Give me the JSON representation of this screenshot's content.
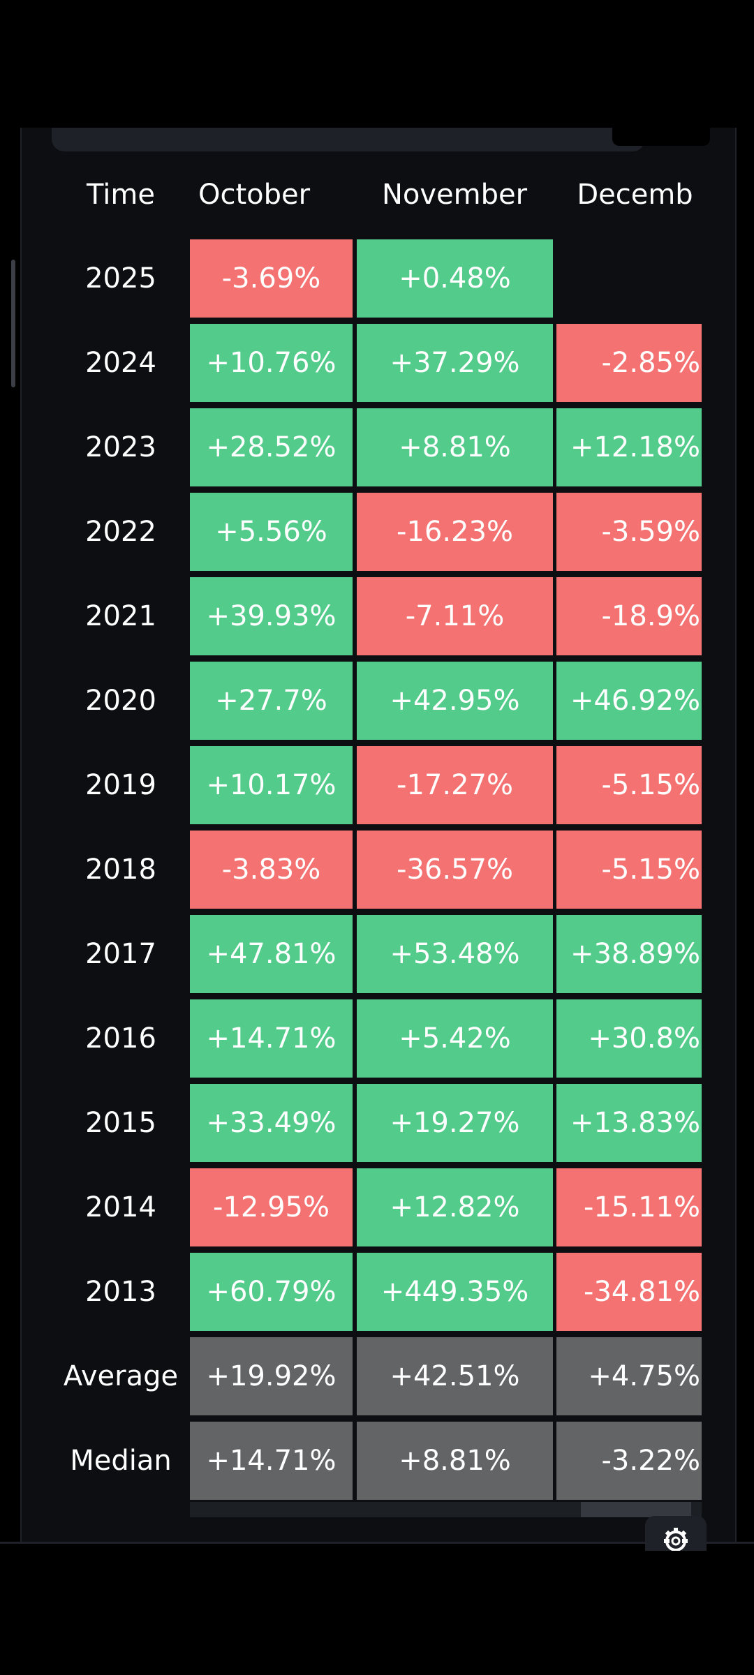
{
  "table": {
    "header": {
      "time": "Time",
      "october": "October",
      "november": "November",
      "december": "Decemb"
    },
    "rows": [
      {
        "label": "2025",
        "october": "-3.69%",
        "november": "+0.48%",
        "december": ""
      },
      {
        "label": "2024",
        "october": "+10.76%",
        "november": "+37.29%",
        "december": "-2.85%"
      },
      {
        "label": "2023",
        "october": "+28.52%",
        "november": "+8.81%",
        "december": "+12.18%"
      },
      {
        "label": "2022",
        "october": "+5.56%",
        "november": "-16.23%",
        "december": "-3.59%"
      },
      {
        "label": "2021",
        "october": "+39.93%",
        "november": "-7.11%",
        "december": "-18.9%"
      },
      {
        "label": "2020",
        "october": "+27.7%",
        "november": "+42.95%",
        "december": "+46.92%"
      },
      {
        "label": "2019",
        "october": "+10.17%",
        "november": "-17.27%",
        "december": "-5.15%"
      },
      {
        "label": "2018",
        "october": "-3.83%",
        "november": "-36.57%",
        "december": "-5.15%"
      },
      {
        "label": "2017",
        "october": "+47.81%",
        "november": "+53.48%",
        "december": "+38.89%"
      },
      {
        "label": "2016",
        "october": "+14.71%",
        "november": "+5.42%",
        "december": "+30.8%"
      },
      {
        "label": "2015",
        "october": "+33.49%",
        "november": "+19.27%",
        "december": "+13.83%"
      },
      {
        "label": "2014",
        "october": "-12.95%",
        "november": "+12.82%",
        "december": "-15.11%"
      },
      {
        "label": "2013",
        "october": "+60.79%",
        "november": "+449.35%",
        "december": "-34.81%"
      }
    ],
    "summary": [
      {
        "label": "Average",
        "october": "+19.92%",
        "november": "+42.51%",
        "december": "+4.75%"
      },
      {
        "label": "Median",
        "october": "+14.71%",
        "november": "+8.81%",
        "december": "-3.22%"
      }
    ]
  },
  "colors": {
    "positive": "#53cb8a",
    "negative": "#f57272",
    "summary": "#636466",
    "panel_background": "#0c0e12"
  },
  "icons": {
    "settings": "gear-icon"
  }
}
